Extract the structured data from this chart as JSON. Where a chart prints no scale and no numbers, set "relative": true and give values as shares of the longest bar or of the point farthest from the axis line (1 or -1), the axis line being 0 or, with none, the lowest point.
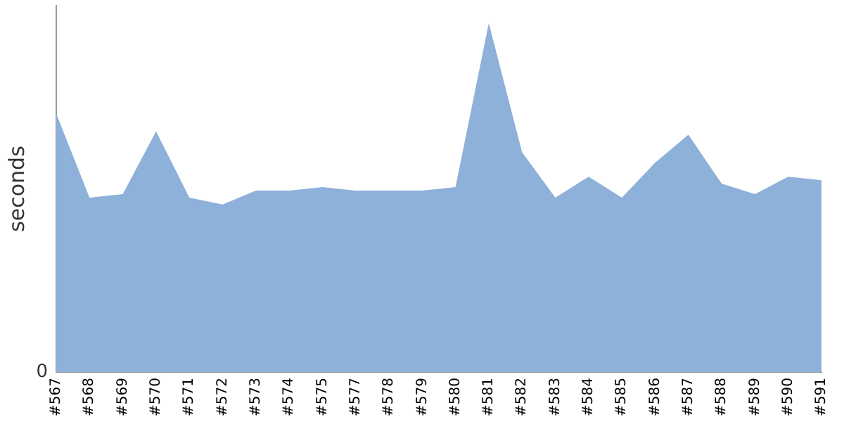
{
  "chart_data": {
    "type": "area",
    "ylabel": "seconds",
    "relative": true,
    "grid": false,
    "legend": false,
    "annotations": [
      "0"
    ],
    "categories": [
      "#567",
      "#568",
      "#569",
      "#570",
      "#571",
      "#572",
      "#573",
      "#574",
      "#575",
      "#577",
      "#578",
      "#579",
      "#580",
      "#581",
      "#582",
      "#583",
      "#584",
      "#585",
      "#586",
      "#587",
      "#588",
      "#589",
      "#590",
      "#591"
    ],
    "series": [
      {
        "color": "#8eb1da",
        "values": [
          0.74,
          0.5,
          0.51,
          0.69,
          0.5,
          0.48,
          0.52,
          0.52,
          0.53,
          0.52,
          0.52,
          0.52,
          0.53,
          1,
          0.63,
          0.5,
          0.56,
          0.5,
          0.6,
          0.68,
          0.54,
          0.51,
          0.56,
          0.55
        ]
      }
    ]
  }
}
